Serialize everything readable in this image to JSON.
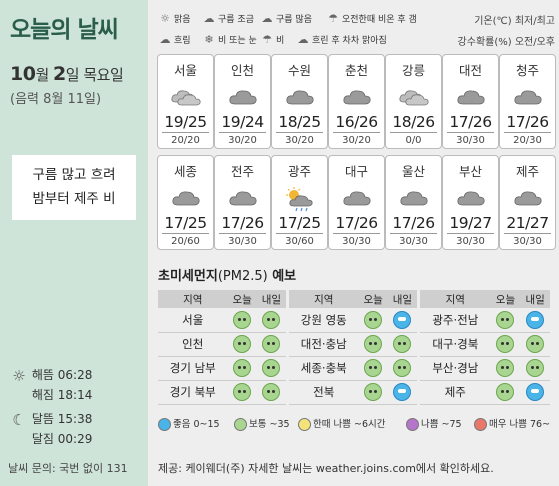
{
  "title": "오늘의 날씨",
  "date": {
    "month_num": "10",
    "month_unit": "월 ",
    "day_num": "2",
    "day_unit": "일 ",
    "weekday": "목요일",
    "lunar": "(음력 8월 11일)"
  },
  "summary": {
    "line1": "구름 많고 흐려",
    "line2": "밤부터 제주 비"
  },
  "astro": {
    "sunrise_label": "해뜸",
    "sunrise": "06:28",
    "sunset_label": "해짐",
    "sunset": "18:14",
    "moonrise_label": "달뜸",
    "moonrise": "15:38",
    "moonset_label": "달짐",
    "moonset": "00:29"
  },
  "contact": "날씨 문의: 국번 없이 131",
  "legend": [
    {
      "icon": "sun-icon",
      "label": "맑음"
    },
    {
      "icon": "partly-cloudy-icon",
      "label": "구름 조금"
    },
    {
      "icon": "cloudy-icon",
      "label": "구름 많음"
    },
    {
      "icon": "rain-clear-icon",
      "label": "오전한때 비온 후 갬"
    },
    {
      "icon": "overcast-icon",
      "label": "흐림"
    },
    {
      "icon": "rain-snow-icon",
      "label": "비 또는 눈"
    },
    {
      "icon": "rain-icon",
      "label": "비"
    },
    {
      "icon": "cloudy-clearing-icon",
      "label": "흐린 후 차차 맑아짐"
    }
  ],
  "units": {
    "temp": "기온(℃) 최저/최고",
    "rain": "강수확률(%) 오전/오후"
  },
  "cities": [
    {
      "name": "서울",
      "temp": "19/25",
      "rain": "20/20",
      "icon": "cloudy"
    },
    {
      "name": "인천",
      "temp": "19/24",
      "rain": "30/20",
      "icon": "overcast"
    },
    {
      "name": "수원",
      "temp": "18/25",
      "rain": "30/20",
      "icon": "overcast"
    },
    {
      "name": "춘천",
      "temp": "16/26",
      "rain": "30/20",
      "icon": "overcast"
    },
    {
      "name": "강릉",
      "temp": "18/26",
      "rain": "0/0",
      "icon": "cloudy"
    },
    {
      "name": "대전",
      "temp": "17/26",
      "rain": "30/30",
      "icon": "overcast"
    },
    {
      "name": "청주",
      "temp": "17/26",
      "rain": "20/30",
      "icon": "overcast"
    },
    {
      "name": "세종",
      "temp": "17/25",
      "rain": "20/60",
      "icon": "overcast"
    },
    {
      "name": "전주",
      "temp": "17/26",
      "rain": "30/30",
      "icon": "overcast"
    },
    {
      "name": "광주",
      "temp": "17/25",
      "rain": "30/60",
      "icon": "sun-rain"
    },
    {
      "name": "대구",
      "temp": "17/26",
      "rain": "30/30",
      "icon": "overcast"
    },
    {
      "name": "울산",
      "temp": "17/26",
      "rain": "30/30",
      "icon": "overcast"
    },
    {
      "name": "부산",
      "temp": "19/27",
      "rain": "30/30",
      "icon": "overcast"
    },
    {
      "name": "제주",
      "temp": "21/27",
      "rain": "30/30",
      "icon": "overcast"
    }
  ],
  "dust": {
    "title": "초미세먼지",
    "pm": "(PM2.5)",
    "suffix": " 예보",
    "headers": {
      "region": "지역",
      "today": "오늘",
      "tomorrow": "내일"
    },
    "col1": [
      {
        "region": "서울",
        "today": "normal",
        "tomorrow": "normal"
      },
      {
        "region": "인천",
        "today": "normal",
        "tomorrow": "normal"
      },
      {
        "region": "경기 남부",
        "today": "normal",
        "tomorrow": "normal"
      },
      {
        "region": "경기 북부",
        "today": "normal",
        "tomorrow": "normal"
      }
    ],
    "col2": [
      {
        "region": "강원 영동",
        "today": "normal",
        "tomorrow": "good"
      },
      {
        "region": "대전·충남",
        "today": "normal",
        "tomorrow": "normal"
      },
      {
        "region": "세종·충북",
        "today": "normal",
        "tomorrow": "normal"
      },
      {
        "region": "전북",
        "today": "normal",
        "tomorrow": "good"
      }
    ],
    "col3": [
      {
        "region": "광주·전남",
        "today": "normal",
        "tomorrow": "good"
      },
      {
        "region": "대구·경북",
        "today": "normal",
        "tomorrow": "normal"
      },
      {
        "region": "부산·경남",
        "today": "normal",
        "tomorrow": "normal"
      },
      {
        "region": "제주",
        "today": "normal",
        "tomorrow": "good"
      }
    ],
    "legend": [
      {
        "label": "좋음 0~15",
        "color": "#4ab3e8"
      },
      {
        "label": "보통 ~35",
        "color": "#a8d58f"
      },
      {
        "label": "한때 나쁨 ~6시간",
        "color": "#f5e27a"
      },
      {
        "label": "나쁨 ~75",
        "color": "#b576c9"
      },
      {
        "label": "매우 나쁨 76~",
        "color": "#e8796a"
      }
    ]
  },
  "source": "제공: 케이웨더(주) 자세한 날씨는 weather.joins.com에서 확인하세요."
}
